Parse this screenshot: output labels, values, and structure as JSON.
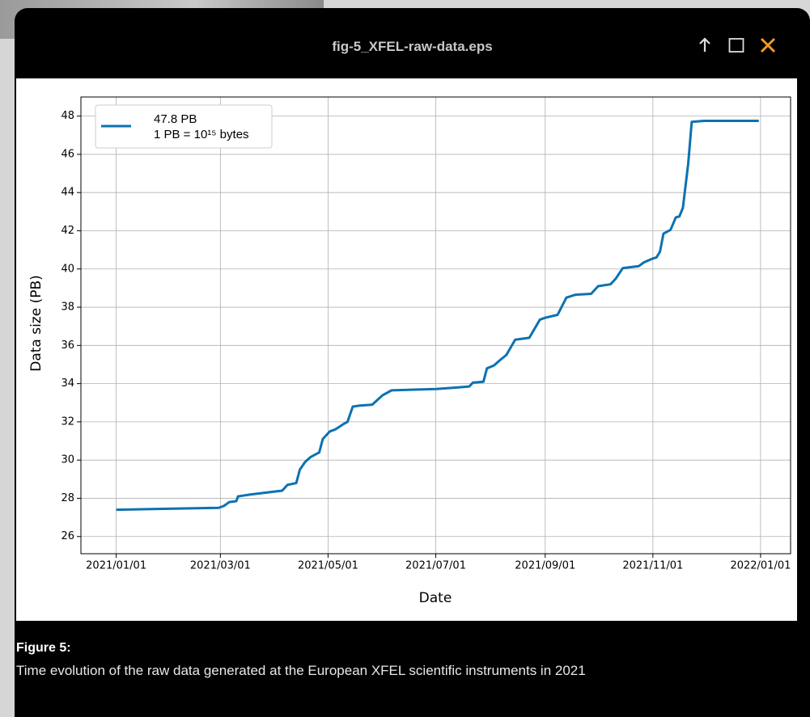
{
  "header": {
    "title": "fig-5_XFEL-raw-data.eps"
  },
  "chart_data": {
    "type": "line",
    "x_label": "Date",
    "y_label": "Data size (PB)",
    "x": [
      "2021-01-01",
      "2021-01-27",
      "2021-02-28",
      "2021-03-03",
      "2021-03-06",
      "2021-03-10",
      "2021-03-11",
      "2021-03-18",
      "2021-03-27",
      "2021-04-05",
      "2021-04-08",
      "2021-04-13",
      "2021-04-15",
      "2021-04-18",
      "2021-04-21",
      "2021-04-26",
      "2021-04-28",
      "2021-05-02",
      "2021-05-05",
      "2021-05-10",
      "2021-05-12",
      "2021-05-15",
      "2021-05-19",
      "2021-05-26",
      "2021-06-01",
      "2021-06-06",
      "2021-07-01",
      "2021-07-13",
      "2021-07-20",
      "2021-07-22",
      "2021-07-28",
      "2021-07-30",
      "2021-08-03",
      "2021-08-06",
      "2021-08-10",
      "2021-08-15",
      "2021-08-23",
      "2021-08-29",
      "2021-09-01",
      "2021-09-08",
      "2021-09-13",
      "2021-09-18",
      "2021-09-27",
      "2021-10-01",
      "2021-10-08",
      "2021-10-11",
      "2021-10-15",
      "2021-10-24",
      "2021-10-27",
      "2021-11-01",
      "2021-11-03",
      "2021-11-05",
      "2021-11-07",
      "2021-11-11",
      "2021-11-14",
      "2021-11-16",
      "2021-11-18",
      "2021-11-21",
      "2021-11-23",
      "2021-11-30",
      "2021-12-31"
    ],
    "series": [
      {
        "name": "47.8 PB",
        "color": "#0c72b0",
        "values": [
          27.4,
          27.45,
          27.5,
          27.6,
          27.8,
          27.85,
          28.1,
          28.2,
          28.3,
          28.4,
          28.7,
          28.8,
          29.5,
          29.9,
          30.15,
          30.4,
          31.1,
          31.5,
          31.6,
          31.9,
          32.0,
          32.8,
          32.85,
          32.9,
          33.4,
          33.65,
          33.72,
          33.8,
          33.85,
          34.05,
          34.1,
          34.8,
          34.95,
          35.2,
          35.5,
          36.3,
          36.4,
          37.35,
          37.45,
          37.6,
          38.5,
          38.65,
          38.7,
          39.1,
          39.2,
          39.5,
          40.05,
          40.15,
          40.35,
          40.55,
          40.6,
          40.9,
          41.85,
          42.05,
          42.7,
          42.75,
          43.2,
          45.5,
          47.7,
          47.75,
          47.75
        ]
      }
    ],
    "legend_note": "1 PB = 10¹⁵ bytes",
    "legend": "upper left",
    "xlim": [
      "2020-12-12",
      "2022-01-18"
    ],
    "xticks": [
      "2021/01/01",
      "2021/03/01",
      "2021/05/01",
      "2021/07/01",
      "2021/09/01",
      "2021/11/01",
      "2022/01/01"
    ],
    "ylim": [
      25.1,
      49.0
    ],
    "yticks": [
      26,
      28,
      30,
      32,
      34,
      36,
      38,
      40,
      42,
      44,
      46,
      48
    ],
    "grid": true
  },
  "caption": {
    "label": "Figure 5:",
    "text": "Time evolution of the raw data generated at the European XFEL scientific instruments in 2021"
  }
}
